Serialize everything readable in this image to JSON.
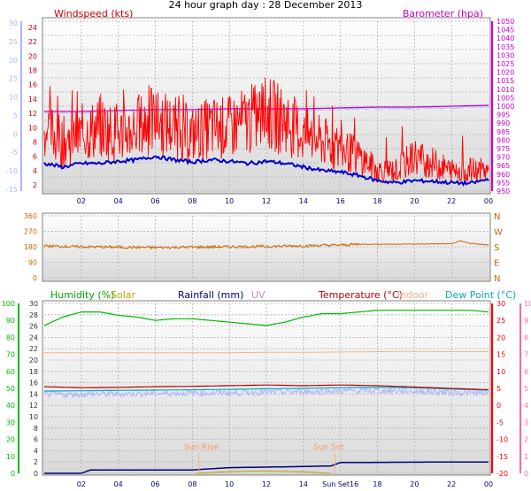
{
  "title": "24 hour graph day : 28 December 2013",
  "colors": {
    "wind": "#ff0000",
    "gust": "#ff0000",
    "wind_avg": "#0000cc",
    "baro": "#cc00cc",
    "baro_band": "#aab4ff",
    "winddir": "#cc6600",
    "humidity": "#00bb00",
    "solar": "#c8a000",
    "rainfall": "#000080",
    "uv": "#cc88cc",
    "temperature": "#bb0000",
    "indoor": "#ffb080",
    "dewpoint": "#00aacc",
    "dewband": "#aab4ff",
    "left_axis_wind": "#aab4ff",
    "left_axis_hum": "#00bb00",
    "right_axis_temp": "#ff0000",
    "right_axis_dew": "#ff66aa"
  },
  "chart_data": [
    {
      "type": "line",
      "title": "24 hour graph day : 28 December 2013",
      "labels": {
        "windspeed": "Windspeed (kts)",
        "barometer": "Barometer (hpa)"
      },
      "x_ticks": [
        "02",
        "04",
        "06",
        "08",
        "10",
        "12",
        "14",
        "16",
        "18",
        "20",
        "22",
        "00"
      ],
      "x_range_hours": [
        0,
        24
      ],
      "y_left_ticks": [
        "24",
        "22",
        "20",
        "18",
        "16",
        "14",
        "12",
        "10",
        "8",
        "6",
        "4",
        "2"
      ],
      "y_left_range": [
        1,
        25
      ],
      "y_left_outer_ticks": [
        "30",
        "25",
        "20",
        "15",
        "10",
        "5",
        "0",
        "-5",
        "-10",
        "-15"
      ],
      "y_right_ticks": [
        "1050",
        "1045",
        "1040",
        "1035",
        "1030",
        "1025",
        "1020",
        "1015",
        "1010",
        "1005",
        "1000",
        "995",
        "990",
        "985",
        "980",
        "975",
        "970",
        "965",
        "960",
        "955",
        "950"
      ],
      "y_right_range": [
        947,
        1052
      ],
      "series": [
        {
          "name": "Windspeed (kts)",
          "kind": "gust",
          "x_hours": [
            0,
            1,
            2,
            3,
            4,
            5,
            6,
            7,
            8,
            9,
            10,
            11,
            12,
            13,
            14,
            15,
            16,
            17,
            18,
            19,
            20,
            21,
            22,
            23,
            24
          ],
          "values": [
            10,
            8,
            9,
            10,
            9,
            10,
            11,
            10,
            9,
            10,
            10,
            11,
            12,
            11,
            9,
            8,
            7,
            6,
            4,
            4,
            6,
            5,
            4,
            4,
            4
          ]
        },
        {
          "name": "Windspeed average",
          "kind": "avg",
          "x_hours": [
            0,
            1,
            2,
            3,
            4,
            5,
            6,
            7,
            8,
            9,
            10,
            11,
            12,
            13,
            14,
            15,
            16,
            17,
            18,
            19,
            20,
            21,
            22,
            23,
            24
          ],
          "values": [
            5,
            4.5,
            5,
            5,
            5.3,
            5.5,
            6,
            5.5,
            5.2,
            5.5,
            5.3,
            5,
            5.3,
            5,
            4.5,
            4,
            3.8,
            3.3,
            2.6,
            2.3,
            2.6,
            2.5,
            2.3,
            2.2,
            2.8
          ]
        },
        {
          "name": "Barometer (hpa)",
          "kind": "baro",
          "x_hours": [
            0,
            2,
            4,
            6,
            8,
            10,
            12,
            14,
            16,
            18,
            20,
            22,
            24
          ],
          "values": [
            997,
            997,
            997.5,
            998,
            998,
            998.5,
            998.5,
            998.5,
            999,
            999.5,
            999.5,
            1000,
            1000.5
          ]
        }
      ]
    },
    {
      "type": "line",
      "title": "",
      "x_range_hours": [
        0,
        24
      ],
      "y_left_ticks": [
        "360",
        "270",
        "180",
        "90",
        "0"
      ],
      "y_left_range": [
        0,
        360
      ],
      "y_right_ticks": [
        "N",
        "W",
        "S",
        "E",
        "N"
      ],
      "series": [
        {
          "name": "Wind direction",
          "x_hours": [
            0,
            2,
            4,
            6,
            8,
            10,
            12,
            14,
            16,
            17,
            18,
            20,
            22,
            22.5,
            23,
            24
          ],
          "values": [
            185,
            180,
            178,
            176,
            178,
            180,
            182,
            186,
            190,
            195,
            195,
            196,
            198,
            215,
            200,
            190
          ]
        }
      ]
    },
    {
      "type": "line",
      "title": "",
      "labels": {
        "humidity": "Humidity (%)",
        "solar": "Solar",
        "rainfall": "Rainfall (mm)",
        "uv": "UV",
        "temperature": "Temperature (°C)",
        "indoor": "Indoor",
        "dewpoint": "Dew Point (°C)",
        "sunrise": "Sun Rise",
        "sunset": "Sun Set"
      },
      "x_ticks": [
        "02",
        "04",
        "06",
        "08",
        "10",
        "12",
        "14",
        "Sun Set16",
        "18",
        "20",
        "22",
        "00"
      ],
      "x_range_hours": [
        0,
        24
      ],
      "y_left_outer_ticks": [
        "100",
        "90",
        "80",
        "70",
        "60",
        "50",
        "40",
        "30",
        "20",
        "10",
        "0"
      ],
      "y_left_range": [
        0,
        100
      ],
      "y_inner_ticks": [
        "30",
        "28",
        "26",
        "24",
        "22",
        "20",
        "18",
        "16",
        "14",
        "12",
        "10",
        "8",
        "6",
        "4",
        "2",
        "0"
      ],
      "y_right_ticks": [
        "30",
        "25",
        "20",
        "15",
        "10",
        "5",
        "0",
        "-5",
        "-10",
        "-15",
        "-20"
      ],
      "y_right_range": [
        -20,
        30
      ],
      "y_right_outer_ticks": [
        "10",
        "9",
        "8",
        "7",
        "6",
        "5",
        "4",
        "3",
        "2",
        "1",
        "0"
      ],
      "series": [
        {
          "name": "Humidity (%)",
          "x_hours": [
            0,
            1,
            2,
            3,
            4,
            5,
            6,
            7,
            8,
            9,
            10,
            11,
            12,
            13,
            14,
            15,
            16,
            17,
            18,
            19,
            20,
            21,
            22,
            23,
            24
          ],
          "values": [
            87,
            92,
            95,
            95,
            93,
            92,
            90,
            91,
            91,
            90,
            89,
            88,
            87,
            89,
            92,
            94,
            94,
            95,
            96,
            96,
            96,
            96,
            96,
            96,
            95
          ]
        },
        {
          "name": "Temperature (°C)",
          "x_hours": [
            0,
            2,
            4,
            6,
            8,
            10,
            12,
            14,
            16,
            18,
            20,
            22,
            24
          ],
          "values": [
            5.5,
            5.2,
            5.3,
            5.5,
            5.6,
            5.8,
            6,
            5.8,
            6,
            5.8,
            5.4,
            5,
            4.6
          ]
        },
        {
          "name": "Indoor",
          "x_hours": [
            0,
            2,
            4,
            6,
            8,
            10,
            12,
            14,
            16,
            18,
            20,
            22,
            24
          ],
          "values": [
            15.5,
            15.5,
            15.5,
            15.5,
            15.5,
            15.5,
            15.6,
            15.6,
            15.7,
            15.8,
            15.9,
            15.8,
            15.8
          ]
        },
        {
          "name": "Dew Point (°C)",
          "x_hours": [
            0,
            2,
            4,
            6,
            8,
            10,
            12,
            14,
            16,
            18,
            20,
            22,
            24
          ],
          "values": [
            4.2,
            4.3,
            4.4,
            4.5,
            4.6,
            4.7,
            4.9,
            5,
            5.2,
            5.3,
            5.2,
            4.8,
            4.5
          ]
        },
        {
          "name": "Rainfall (mm)",
          "x_hours": [
            0,
            2,
            2.5,
            8,
            10,
            12,
            14,
            15.5,
            16,
            22,
            24
          ],
          "values": [
            0,
            0,
            0.6,
            0.6,
            1,
            1.1,
            1.2,
            1.3,
            1.9,
            2,
            2
          ]
        }
      ]
    }
  ]
}
